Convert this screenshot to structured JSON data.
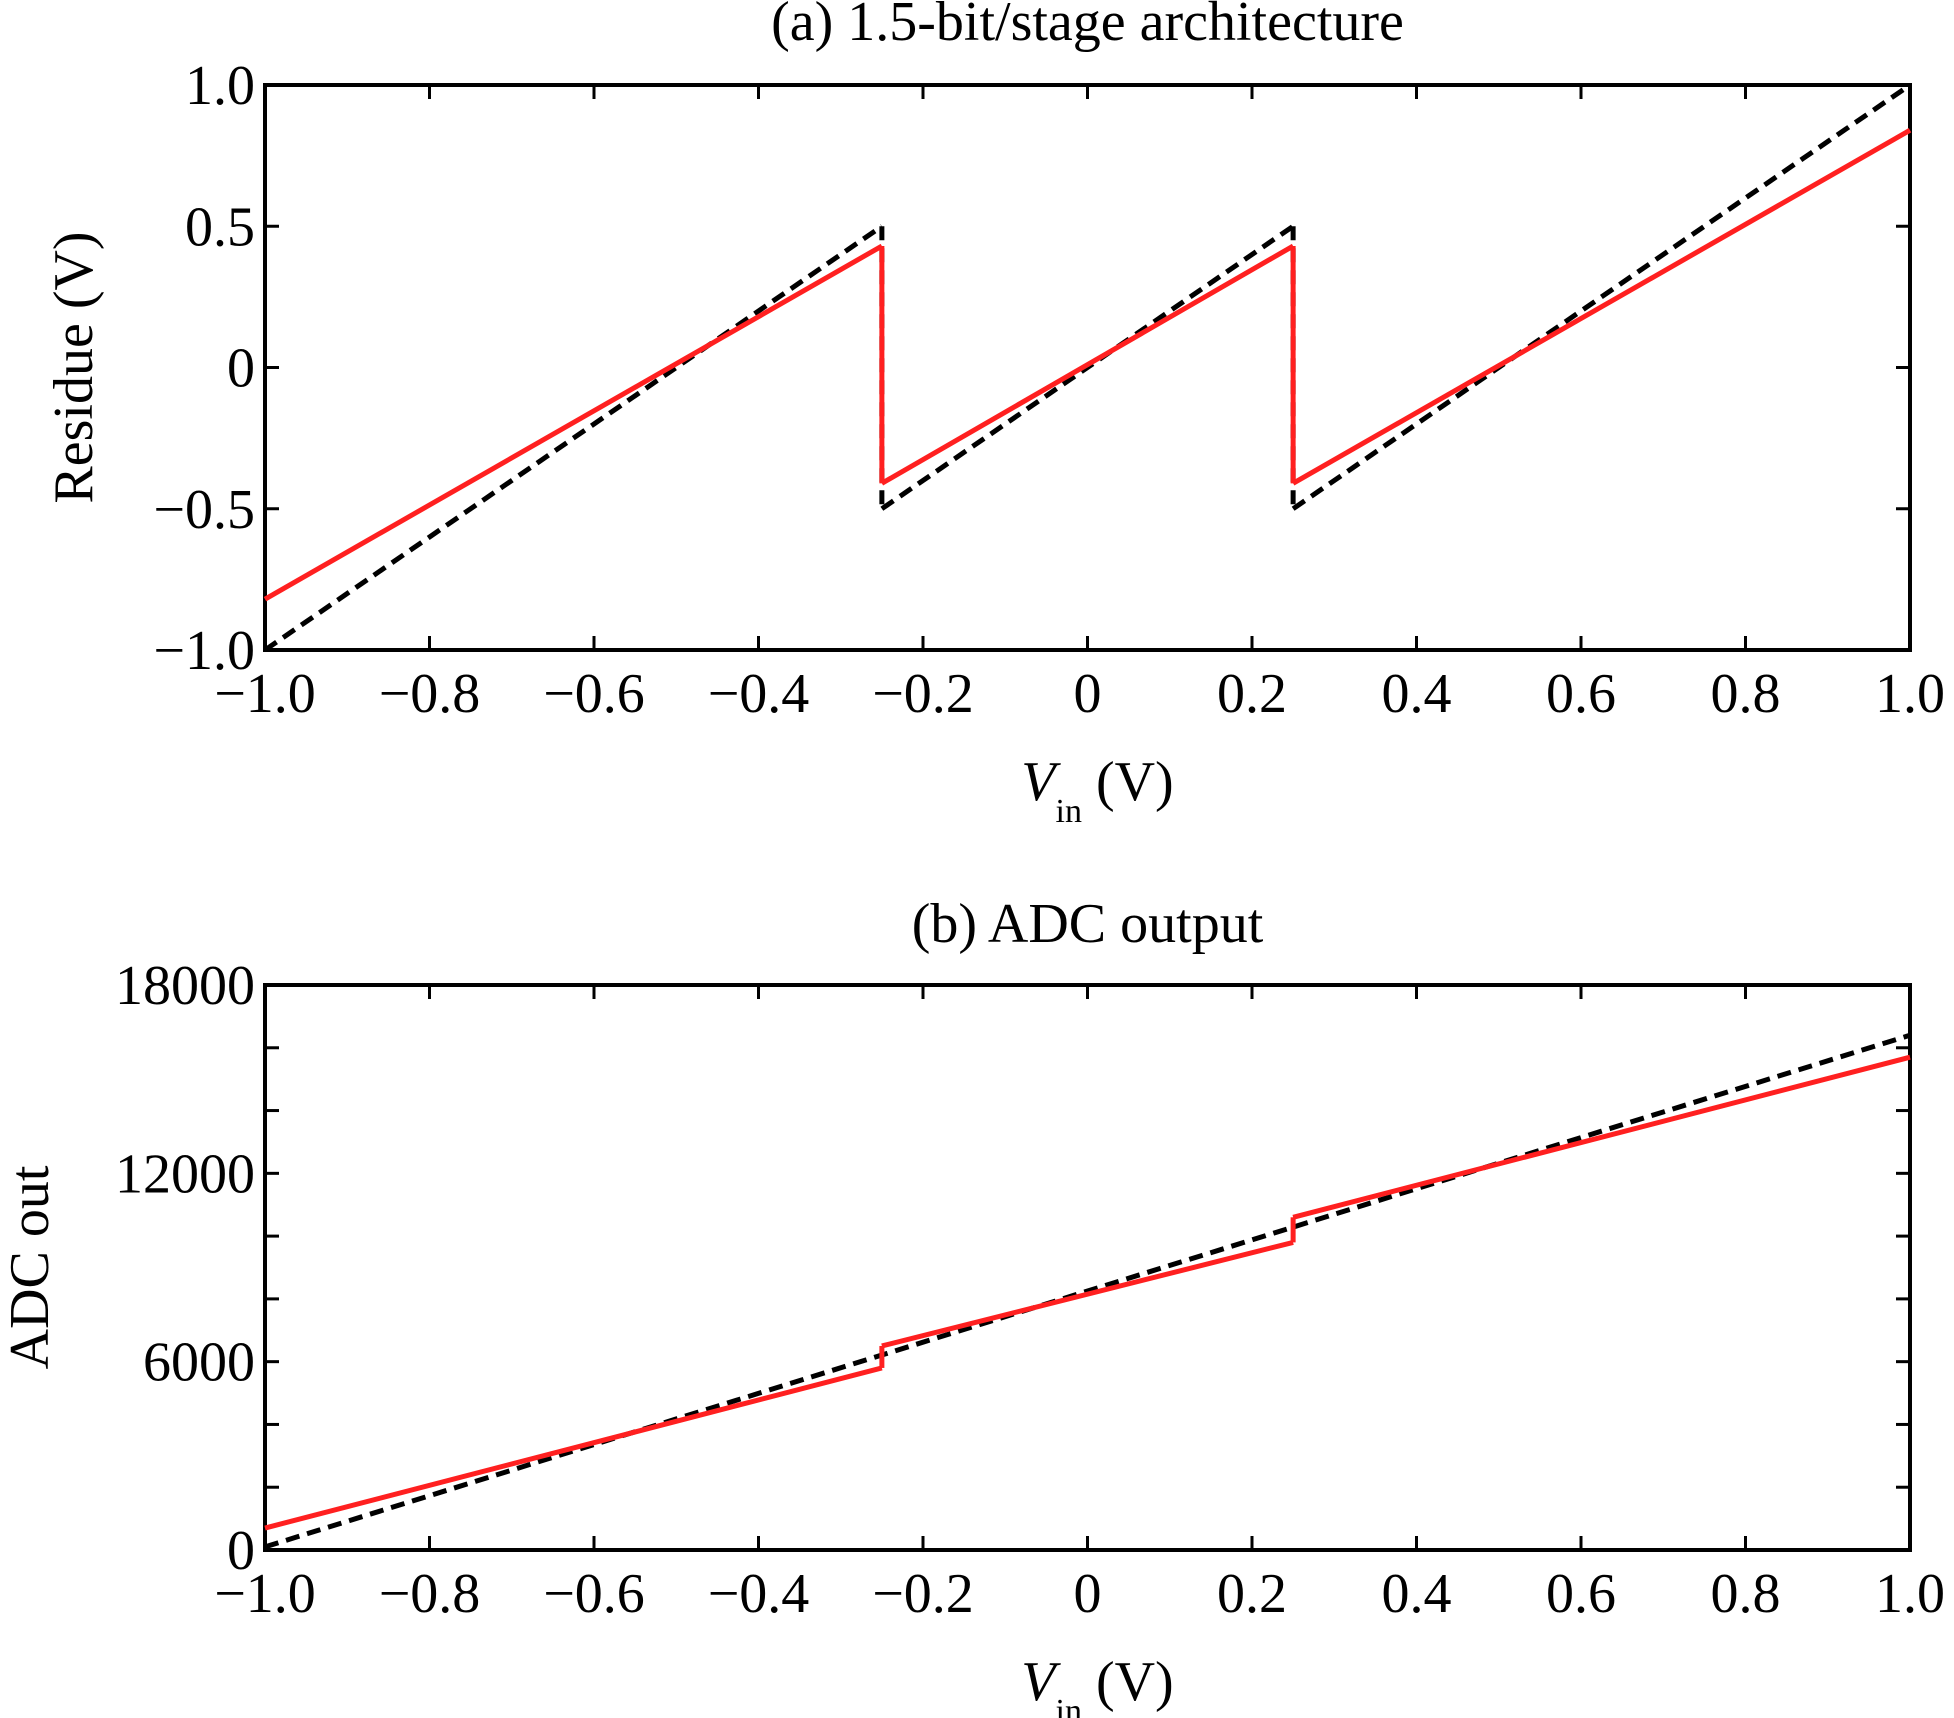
{
  "chart_data": [
    {
      "type": "line",
      "title": "(a) 1.5-bit/stage architecture",
      "xlabel": "V",
      "xlabel_sub": "in",
      "xlabel_unit": "(V)",
      "ylabel": "Residue (V)",
      "xlim": [
        -1.0,
        1.0
      ],
      "ylim": [
        -1.0,
        1.0
      ],
      "xticks": [
        -1.0,
        -0.8,
        -0.6,
        -0.4,
        -0.2,
        0,
        0.2,
        0.4,
        0.6,
        0.8,
        1.0
      ],
      "xtick_labels": [
        "−1.0",
        "−0.8",
        "−0.6",
        "−0.4",
        "−0.2",
        "0",
        "0.2",
        "0.4",
        "0.6",
        "0.8",
        "1.0"
      ],
      "yticks": [
        -1.0,
        -0.5,
        0,
        0.5,
        1.0
      ],
      "ytick_labels": [
        "−1.0",
        "−0.5",
        "0",
        "0.5",
        "1.0"
      ],
      "grid": false,
      "series": [
        {
          "color": "#000000",
          "dash": true,
          "segments": [
            {
              "x": [
                -1.0,
                -0.25
              ],
              "y": [
                -1.0,
                0.5
              ]
            },
            {
              "x": [
                -0.25,
                -0.25
              ],
              "y": [
                0.5,
                -0.5
              ]
            },
            {
              "x": [
                -0.25,
                0.25
              ],
              "y": [
                -0.5,
                0.5
              ]
            },
            {
              "x": [
                0.25,
                0.25
              ],
              "y": [
                0.5,
                -0.5
              ]
            },
            {
              "x": [
                0.25,
                1.0
              ],
              "y": [
                -0.5,
                1.0
              ]
            }
          ]
        },
        {
          "color": "#ff2020",
          "dash": false,
          "segments": [
            {
              "x": [
                -1.0,
                -0.25
              ],
              "y": [
                -0.82,
                0.43
              ]
            },
            {
              "x": [
                -0.25,
                -0.25
              ],
              "y": [
                0.43,
                -0.41
              ]
            },
            {
              "x": [
                -0.25,
                0.25
              ],
              "y": [
                -0.41,
                0.43
              ]
            },
            {
              "x": [
                0.25,
                0.25
              ],
              "y": [
                0.43,
                -0.41
              ]
            },
            {
              "x": [
                0.25,
                1.0
              ],
              "y": [
                -0.41,
                0.84
              ]
            }
          ]
        }
      ]
    },
    {
      "type": "line",
      "title": "(b) ADC output",
      "xlabel": "V",
      "xlabel_sub": "in",
      "xlabel_unit": "(V)",
      "ylabel": "ADC out",
      "xlim": [
        -1.0,
        1.0
      ],
      "ylim": [
        0,
        18000
      ],
      "xticks": [
        -1.0,
        -0.8,
        -0.6,
        -0.4,
        -0.2,
        0,
        0.2,
        0.4,
        0.6,
        0.8,
        1.0
      ],
      "xtick_labels": [
        "−1.0",
        "−0.8",
        "−0.6",
        "−0.4",
        "−0.2",
        "0",
        "0.2",
        "0.4",
        "0.6",
        "0.8",
        "1.0"
      ],
      "yticks": [
        0,
        6000,
        12000,
        18000
      ],
      "ytick_labels": [
        "0",
        "6000",
        "12000",
        "18000"
      ],
      "yminor_ticks": [
        2000,
        4000,
        8000,
        10000,
        14000,
        16000
      ],
      "grid": false,
      "series": [
        {
          "color": "#000000",
          "dash": true,
          "segments": [
            {
              "x": [
                -1.0,
                1.0
              ],
              "y": [
                100,
                16400
              ]
            }
          ]
        },
        {
          "color": "#ff2020",
          "dash": false,
          "segments": [
            {
              "x": [
                -1.0,
                -0.25
              ],
              "y": [
                700,
                5800
              ]
            },
            {
              "x": [
                -0.25,
                -0.25
              ],
              "y": [
                5800,
                6500
              ]
            },
            {
              "x": [
                -0.25,
                0.25
              ],
              "y": [
                6500,
                9800
              ]
            },
            {
              "x": [
                0.25,
                0.25
              ],
              "y": [
                9800,
                10600
              ]
            },
            {
              "x": [
                0.25,
                1.0
              ],
              "y": [
                10600,
                15700
              ]
            }
          ]
        }
      ]
    }
  ]
}
